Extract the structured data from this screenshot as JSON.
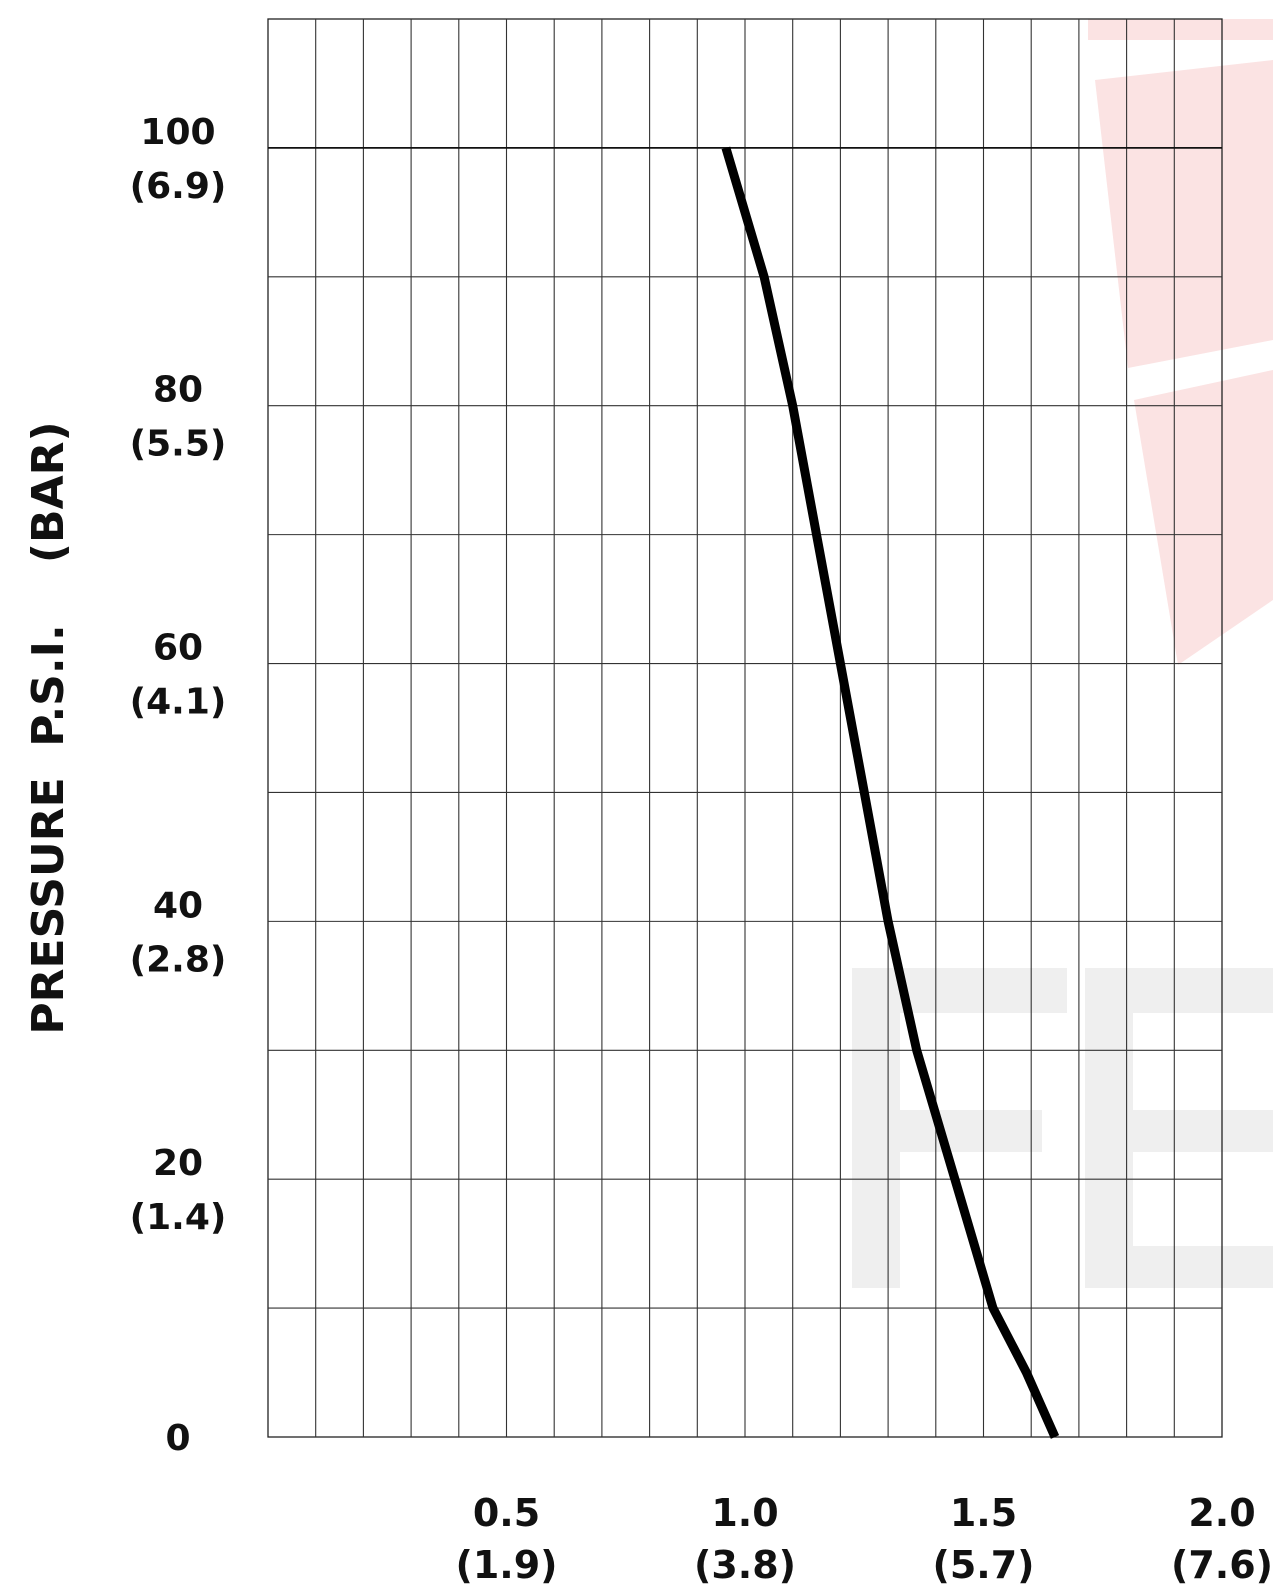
{
  "chart_data": {
    "type": "line",
    "title": "",
    "ylabel": "PRESSURE  P.S.I.    (BAR)",
    "xlabel": "",
    "xlim": [
      0.0,
      2.0
    ],
    "ylim": [
      0,
      110
    ],
    "grid": true,
    "x_ticks": [
      {
        "value": 0.5,
        "label": "0.5",
        "sublabel": "(1.9)"
      },
      {
        "value": 1.0,
        "label": "1.0",
        "sublabel": "(3.8)"
      },
      {
        "value": 1.5,
        "label": "1.5",
        "sublabel": "(5.7)"
      },
      {
        "value": 2.0,
        "label": "2.0",
        "sublabel": "(7.6)"
      }
    ],
    "y_ticks": [
      {
        "value": 0,
        "label": "0",
        "sublabel": ""
      },
      {
        "value": 20,
        "label": "20",
        "sublabel": "(1.4)"
      },
      {
        "value": 40,
        "label": "40",
        "sublabel": "(2.8)"
      },
      {
        "value": 60,
        "label": "60",
        "sublabel": "(4.1)"
      },
      {
        "value": 80,
        "label": "80",
        "sublabel": "(5.5)"
      },
      {
        "value": 100,
        "label": "100",
        "sublabel": "(6.9)"
      }
    ],
    "series": [
      {
        "x": [
          0.96,
          1.04,
          1.1,
          1.15,
          1.2,
          1.25,
          1.3,
          1.36,
          1.44,
          1.52,
          1.59,
          1.65
        ],
        "y": [
          100,
          90,
          80,
          70,
          60,
          50,
          40,
          30,
          20,
          10,
          5,
          0
        ]
      }
    ],
    "line_color": "#000000",
    "watermark_color": "#fbe3e3",
    "watermark_gray": "#efefef"
  }
}
